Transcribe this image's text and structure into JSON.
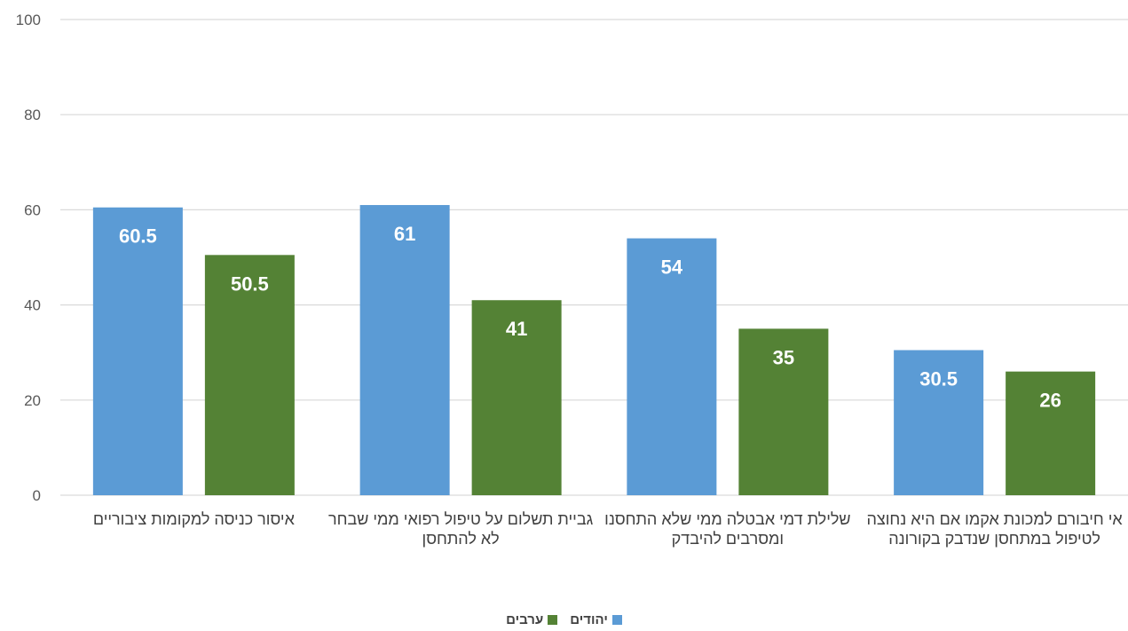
{
  "chart_data": {
    "type": "bar",
    "categories": [
      "איסור כניסה למקומות ציבוריים",
      "גביית תשלום על טיפול רפואי ממי שבחר לא להתחסן",
      "שלילת דמי אבטלה ממי שלא התחסנו ומסרבים להיבדק",
      "אי חיבורם למכונת אקמו אם היא נחוצה לטיפול במתחסן שנדבק בקורונה"
    ],
    "series": [
      {
        "name": "יהודים",
        "color": "#5B9BD5",
        "values": [
          60.5,
          61,
          54,
          30.5
        ]
      },
      {
        "name": "ערבים",
        "color": "#548235",
        "values": [
          50.5,
          41,
          35,
          26
        ]
      }
    ],
    "data_labels": [
      [
        "60.5",
        "61",
        "54",
        "30.5"
      ],
      [
        "50.5",
        "41",
        "35",
        "26"
      ]
    ],
    "ylim": [
      0,
      100
    ],
    "yticks": [
      0,
      20,
      40,
      60,
      80,
      100
    ],
    "grid": true,
    "legend_position": "bottom-center"
  }
}
